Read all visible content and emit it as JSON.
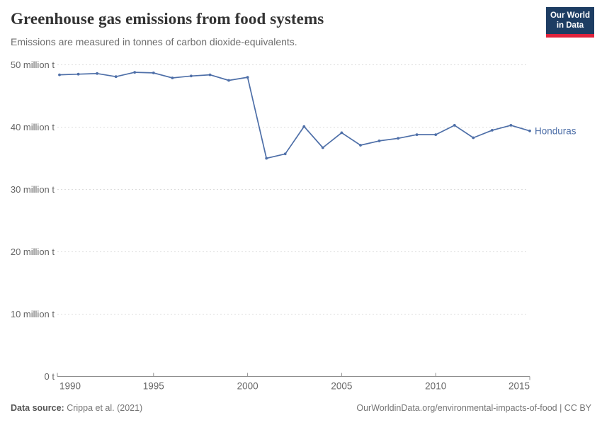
{
  "header": {
    "title": "Greenhouse gas emissions from food systems",
    "subtitle": "Emissions are measured in tonnes of carbon dioxide-equivalents.",
    "logo": {
      "line1": "Our World",
      "line2": "in Data"
    }
  },
  "chart_data": {
    "type": "line",
    "title": "Greenhouse gas emissions from food systems",
    "subtitle": "Emissions are measured in tonnes of carbon dioxide-equivalents.",
    "unit": "million tonnes CO2-equivalents",
    "x": [
      1990,
      1991,
      1992,
      1993,
      1994,
      1995,
      1996,
      1997,
      1998,
      1999,
      2000,
      2001,
      2002,
      2003,
      2004,
      2005,
      2006,
      2007,
      2008,
      2009,
      2010,
      2011,
      2012,
      2013,
      2014,
      2015
    ],
    "series": [
      {
        "name": "Honduras",
        "color": "#4e6fa8",
        "values": [
          48.4,
          48.5,
          48.6,
          48.1,
          48.8,
          48.7,
          47.9,
          48.2,
          48.4,
          47.5,
          48.0,
          35.0,
          35.7,
          40.1,
          36.7,
          39.1,
          37.1,
          37.8,
          38.2,
          38.8,
          38.8,
          40.3,
          38.3,
          39.5,
          40.3,
          39.4
        ]
      }
    ],
    "x_ticks": [
      1990,
      1995,
      2000,
      2005,
      2010,
      2015
    ],
    "y_ticks": [
      0,
      10,
      20,
      30,
      40,
      50
    ],
    "y_tick_labels": [
      "0 t",
      "10 million t",
      "20 million t",
      "30 million t",
      "40 million t",
      "50 million t"
    ],
    "xlim": [
      1990,
      2015
    ],
    "ylim": [
      0,
      50
    ],
    "grid": "horizontal dashed",
    "legend": "entity label at line end"
  },
  "footer": {
    "datasource_label": "Data source:",
    "datasource_value": "Crippa et al. (2021)",
    "link": "OurWorldinData.org/environmental-impacts-of-food | CC BY"
  },
  "colors": {
    "series_line": "#4e6fa8",
    "logo_navy": "#1d3d63",
    "logo_red": "#e0233c",
    "gridline": "#dddddd",
    "axis": "#8f8f8f",
    "tick_label": "#666666"
  }
}
